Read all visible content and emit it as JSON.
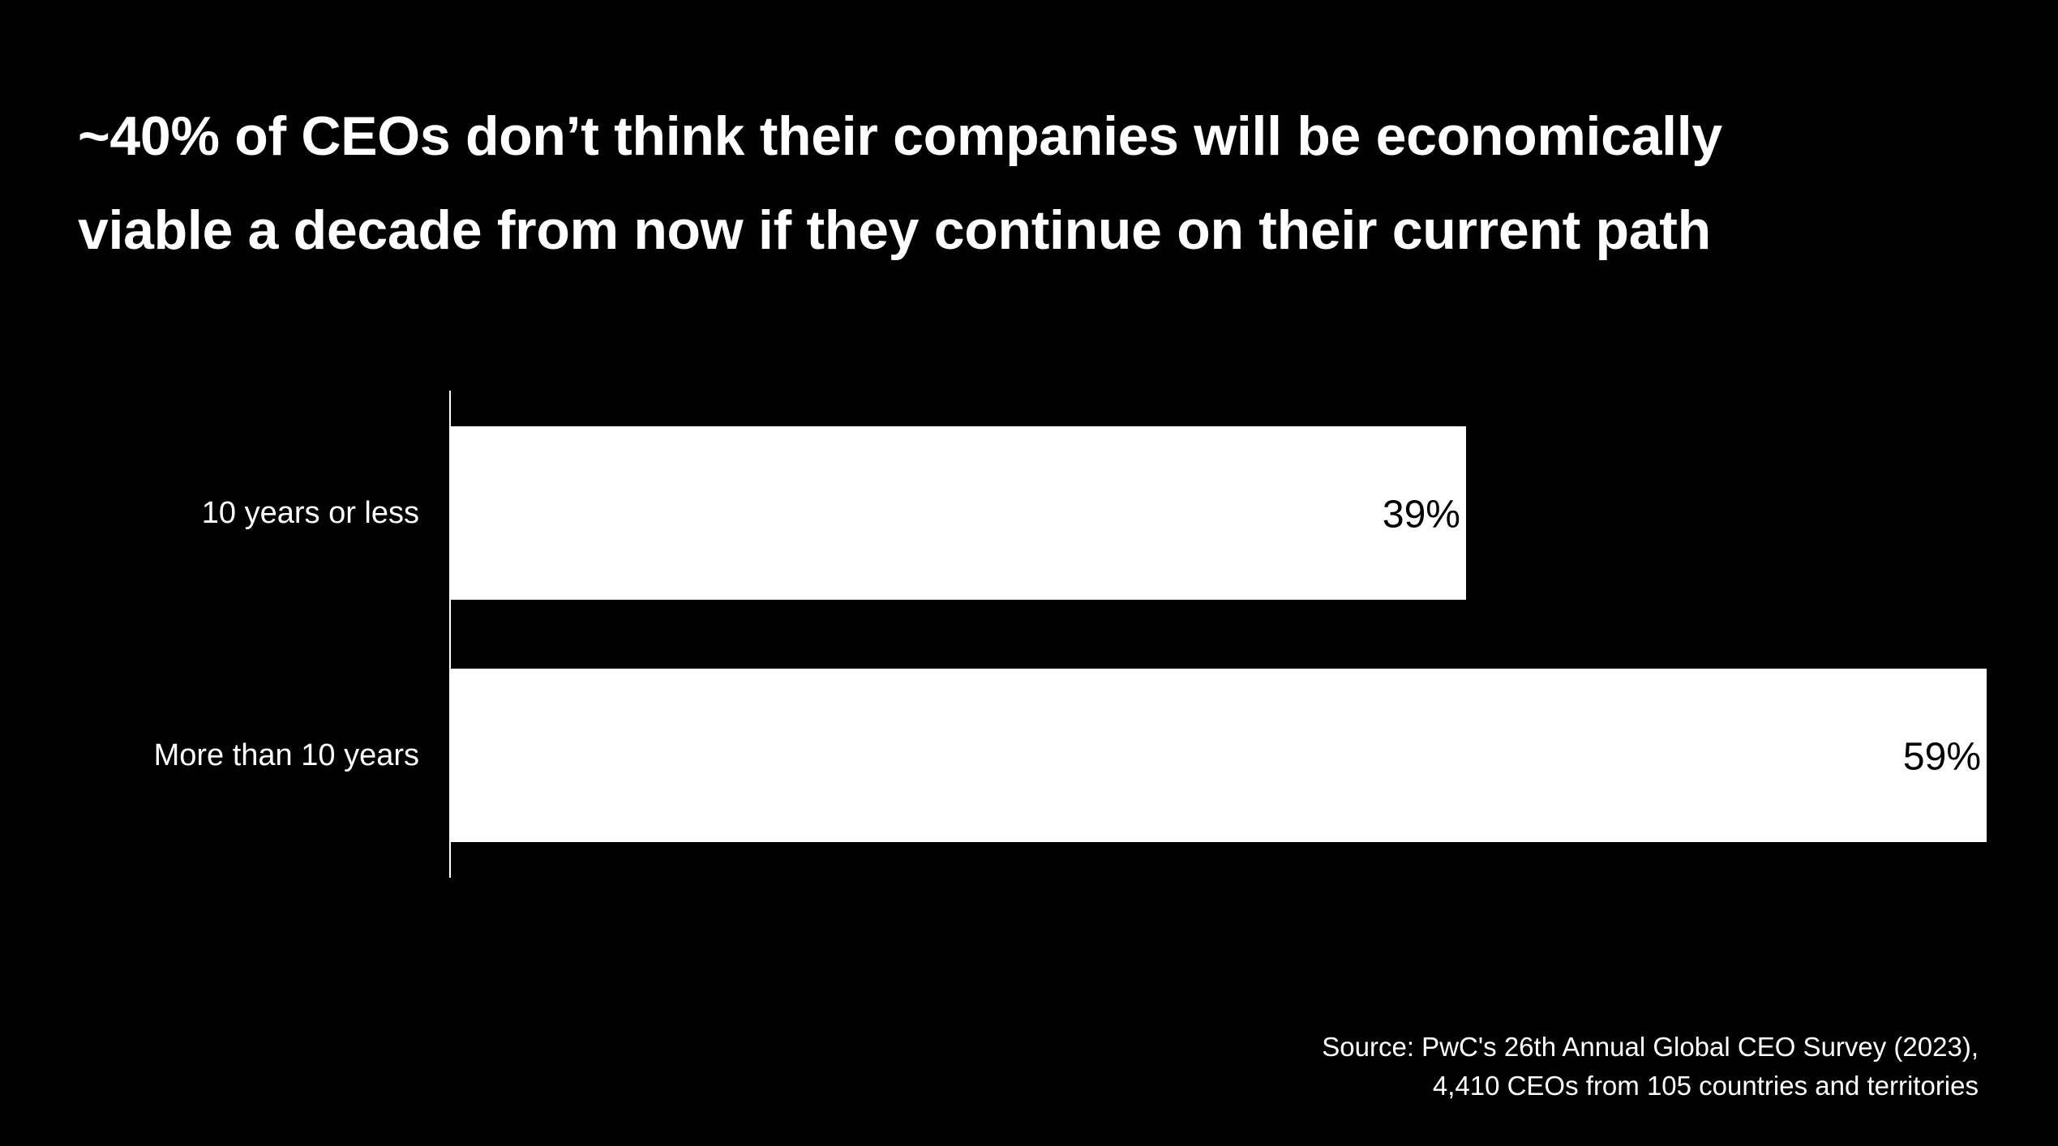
{
  "title_lines": [
    "~40% of CEOs don’t think their companies will be economically",
    "viable a decade from now if they continue on their current path"
  ],
  "source_lines": [
    "Source: PwC's 26th Annual Global CEO Survey (2023),",
    "4,410 CEOs from 105 countries and territories"
  ],
  "colors": {
    "background": "#000000",
    "bar": "#ffffff",
    "text": "#ffffff",
    "value_label": "#000000"
  },
  "chart_data": {
    "type": "bar",
    "orientation": "horizontal",
    "categories": [
      "10 years or less",
      "More than 10 years"
    ],
    "values": [
      39,
      59
    ],
    "value_labels": [
      "39%",
      "59%"
    ],
    "xlim": [
      0,
      59
    ],
    "grid": false,
    "legend": "none"
  }
}
